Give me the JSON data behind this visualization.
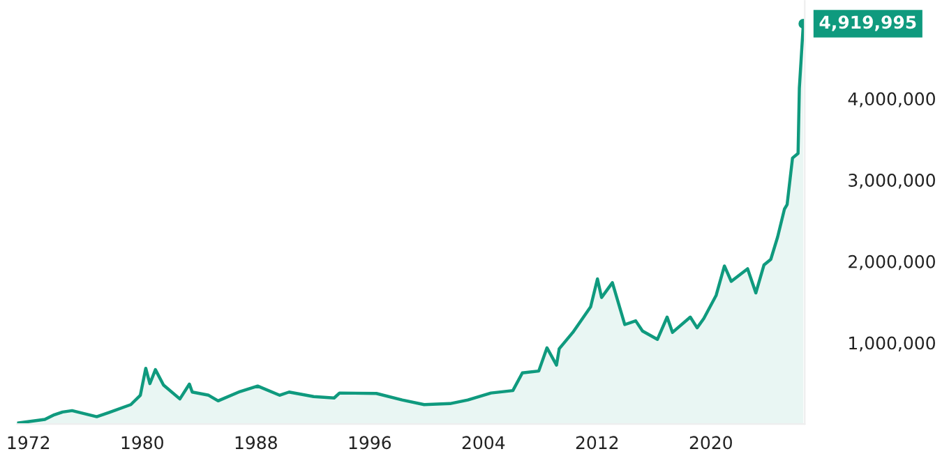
{
  "chart_data": {
    "type": "area",
    "series": [
      {
        "color": "#0f9a7e",
        "x": [
          1971.23,
          1973.15,
          1973.82,
          1974.4,
          1975.07,
          1976.8,
          1977.66,
          1979.2,
          1979.87,
          1980.25,
          1980.54,
          1980.93,
          1981.5,
          1982.65,
          1983.32,
          1983.52,
          1984.67,
          1985.34,
          1986.88,
          1988.12,
          1989.66,
          1990.33,
          1992.06,
          1993.5,
          1993.88,
          1996.47,
          1998.29,
          1999.83,
          2001.65,
          2002.9,
          2004.53,
          2006.07,
          2006.74,
          2007.89,
          2008.47,
          2009.14,
          2009.33,
          2010.29,
          2011.54,
          2012.02,
          2012.31,
          2013.07,
          2013.94,
          2014.71,
          2015.19,
          2016.24,
          2016.92,
          2017.3,
          2018.55,
          2019.03,
          2019.5,
          2020.37,
          2020.95,
          2021.43,
          2022.58,
          2023.16,
          2023.73,
          2024.21,
          2024.69,
          2025.17,
          2025.36,
          2025.74,
          2026.13,
          2026.22,
          2026.5
        ],
        "values": [
          12000,
          57000,
          115000,
          149000,
          166000,
          91000,
          142000,
          240000,
          355000,
          686000,
          497000,
          669000,
          480000,
          309000,
          492000,
          394000,
          355000,
          286000,
          400000,
          468000,
          355000,
          394000,
          338000,
          321000,
          382000,
          377000,
          297000,
          240000,
          252000,
          297000,
          382000,
          412000,
          629000,
          652000,
          938000,
          725000,
          926000,
          1127000,
          1441000,
          1784000,
          1556000,
          1738000,
          1223000,
          1269000,
          1144000,
          1041000,
          1315000,
          1127000,
          1315000,
          1183000,
          1298000,
          1583000,
          1943000,
          1754000,
          1909000,
          1612000,
          1955000,
          2024000,
          2298000,
          2641000,
          2698000,
          3270000,
          3327000,
          4128000,
          4919995
        ]
      }
    ],
    "xlim": [
      1971.2,
      2026.6
    ],
    "xticks": [
      1972,
      1980,
      1988,
      1996,
      2004,
      2012,
      2020
    ],
    "ylim": [
      0,
      5200000
    ],
    "yticks": [
      {
        "value": 1000000,
        "label": "1,000,000"
      },
      {
        "value": 2000000,
        "label": "2,000,000"
      },
      {
        "value": 3000000,
        "label": "3,000,000"
      },
      {
        "value": 4000000,
        "label": "4,000,000"
      }
    ],
    "annotations": [
      {
        "text": "4,919,995",
        "x": 2026.5,
        "y": 4919995
      }
    ],
    "grid": false
  }
}
